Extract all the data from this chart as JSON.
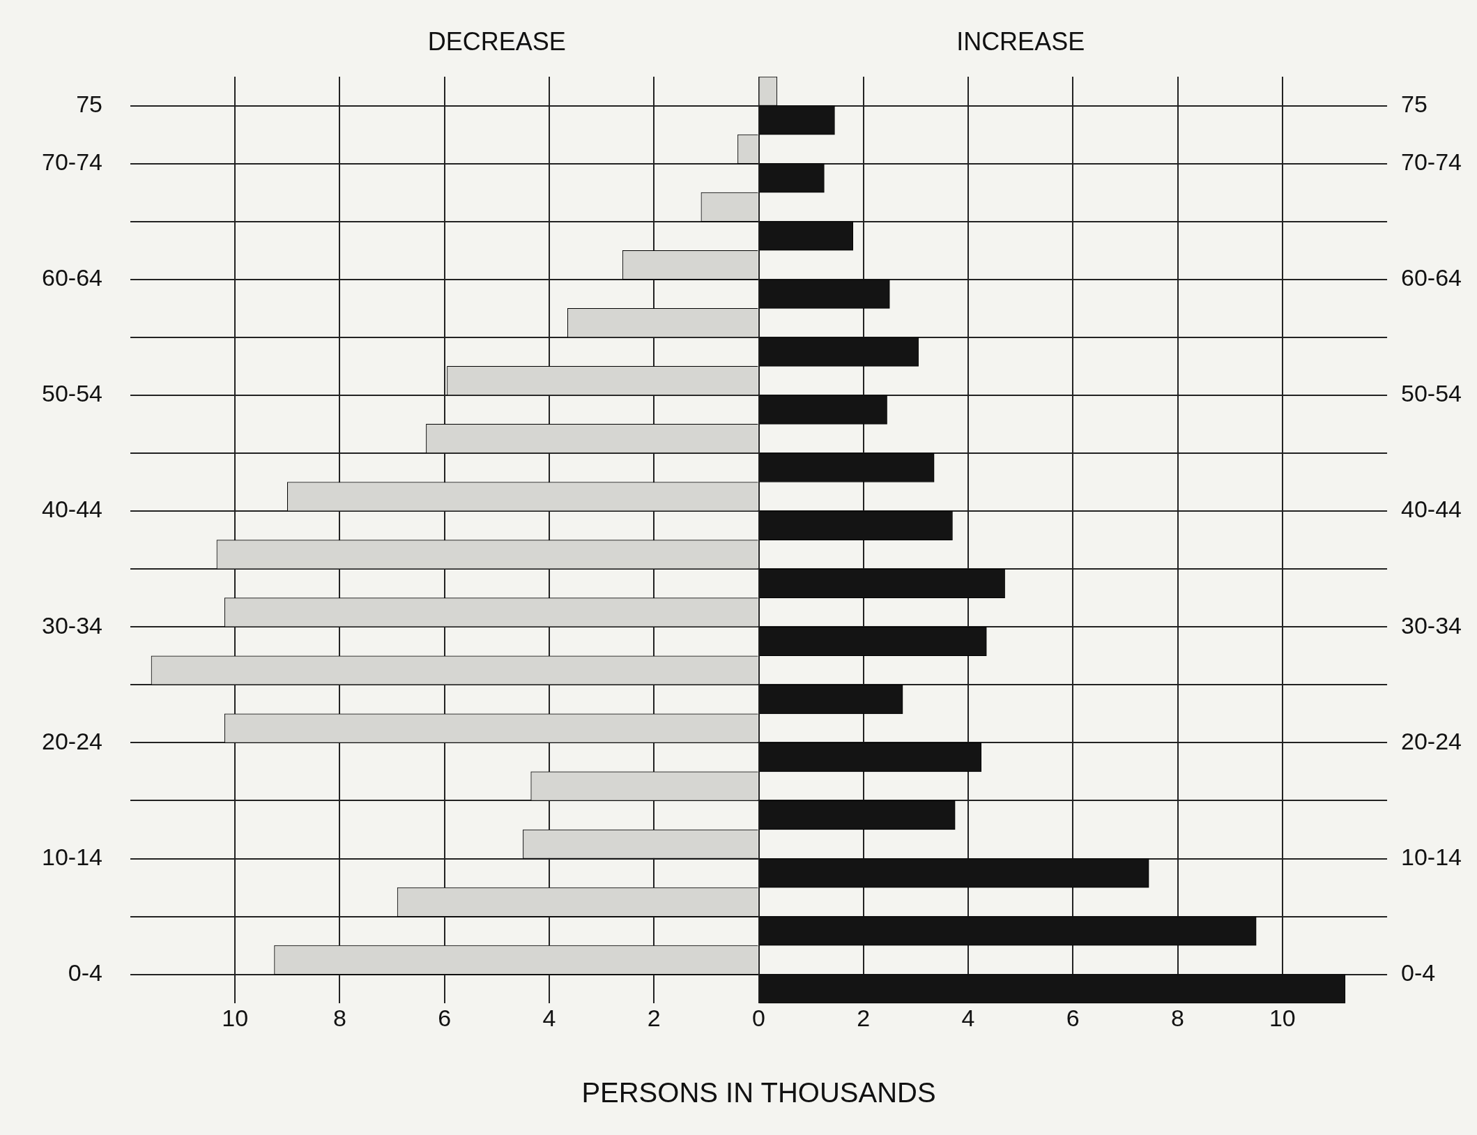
{
  "chart_data": {
    "type": "bar",
    "orientation": "horizontal",
    "xlabel": "PERSONS IN THOUSANDS",
    "annotations": [
      "DECREASE",
      "INCREASE"
    ],
    "categories": [
      "75",
      "70-74",
      null,
      "60-64",
      null,
      "50-54",
      null,
      "40-44",
      null,
      "30-34",
      null,
      "20-24",
      null,
      "10-14",
      null,
      "0-4"
    ],
    "series": [
      {
        "color": "#d6d6d2",
        "values": [
          0.35,
          -0.4,
          -1.1,
          -2.6,
          -3.65,
          -5.95,
          -6.35,
          -9.0,
          -10.35,
          -10.2,
          -11.6,
          -10.2,
          -4.35,
          -4.5,
          -6.9,
          -9.25
        ]
      },
      {
        "color": "#141414",
        "values": [
          1.45,
          1.25,
          1.8,
          2.5,
          3.05,
          2.45,
          3.35,
          3.7,
          4.7,
          4.35,
          2.75,
          4.25,
          3.75,
          7.45,
          9.5,
          11.2
        ]
      }
    ],
    "xlim": [
      -12,
      12
    ],
    "xticks": [
      {
        "value": -10,
        "label": "10"
      },
      {
        "value": -8,
        "label": "8"
      },
      {
        "value": -6,
        "label": "6"
      },
      {
        "value": -4,
        "label": "4"
      },
      {
        "value": -2,
        "label": "2"
      },
      0,
      2,
      4,
      6,
      8,
      10
    ],
    "grid": true,
    "legend": false
  }
}
